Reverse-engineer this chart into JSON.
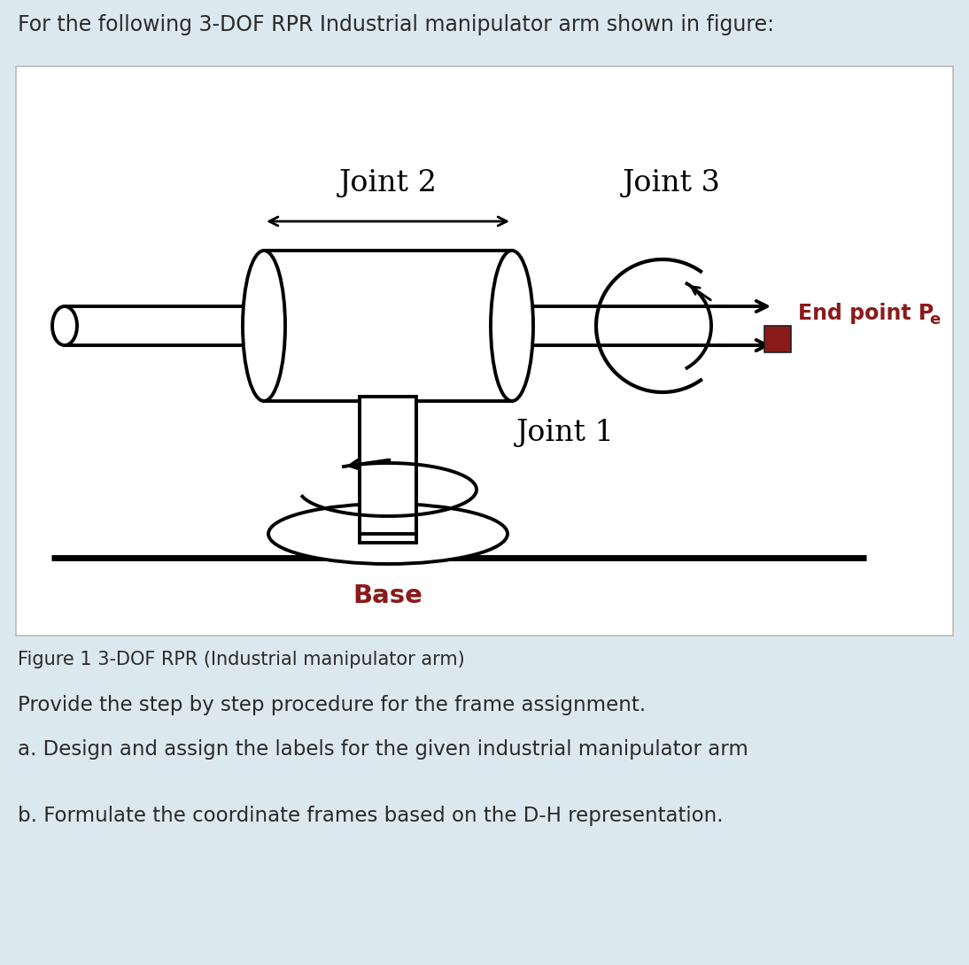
{
  "bg_color": "#dce8f0",
  "title_text": "For the following 3-DOF RPR Industrial manipulator arm shown in figure:",
  "figure_caption": "Figure 1 3-DOF RPR (Industrial manipulator arm)",
  "question1": "Provide the step by step procedure for the frame assignment.",
  "question2": "a. Design and assign the labels for the given industrial manipulator arm",
  "question3": "b. Formulate the coordinate frames based on the D-H representation.",
  "joint1_label": "Joint 1",
  "joint2_label": "Joint 2",
  "joint3_label": "Joint 3",
  "endpoint_label": "End point P",
  "base_label": "Base",
  "arm_color": "#000000",
  "endpoint_color": "#8b1a1a",
  "text_color": "#2a2a2a",
  "base_text_color": "#8b1a1a",
  "box_edge_color": "#bbbbbb"
}
